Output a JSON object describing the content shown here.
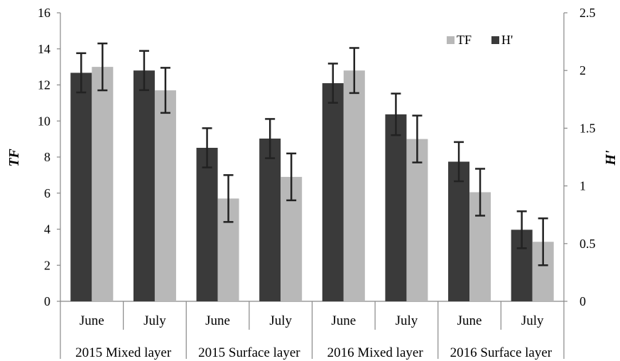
{
  "chart_data": {
    "type": "bar",
    "categories": [
      "June",
      "July",
      "June",
      "July",
      "June",
      "July",
      "June",
      "July"
    ],
    "groups": [
      "2015 Mixed layer",
      "2015 Surface layer",
      "2016 Mixed layer",
      "2016 Surface layer"
    ],
    "series": [
      {
        "name": "H'",
        "axis": "right",
        "color": "#3a3a3a",
        "values": [
          1.98,
          2.0,
          1.33,
          1.41,
          1.89,
          1.62,
          1.21,
          0.62
        ],
        "error": [
          0.17,
          0.17,
          0.17,
          0.17,
          0.17,
          0.18,
          0.17,
          0.16
        ]
      },
      {
        "name": "TF",
        "axis": "left",
        "color": "#b8b8b8",
        "values": [
          13.0,
          11.7,
          5.7,
          6.9,
          12.8,
          9.0,
          6.05,
          3.3
        ],
        "error": [
          1.3,
          1.25,
          1.3,
          1.3,
          1.25,
          1.3,
          1.3,
          1.3
        ]
      }
    ],
    "ylabel_left": "TF",
    "ylabel_right": "H'",
    "ylim_left": [
      0,
      16
    ],
    "ylim_right": [
      0,
      2.5
    ],
    "yticks_left": [
      "0",
      "2",
      "4",
      "6",
      "8",
      "10",
      "12",
      "14",
      "16"
    ],
    "yticks_right": [
      "0",
      "0.5",
      "1",
      "1.5",
      "2",
      "2.5"
    ],
    "legend": [
      "TF",
      "H'"
    ],
    "legend_position": "top-right",
    "grid": false
  }
}
